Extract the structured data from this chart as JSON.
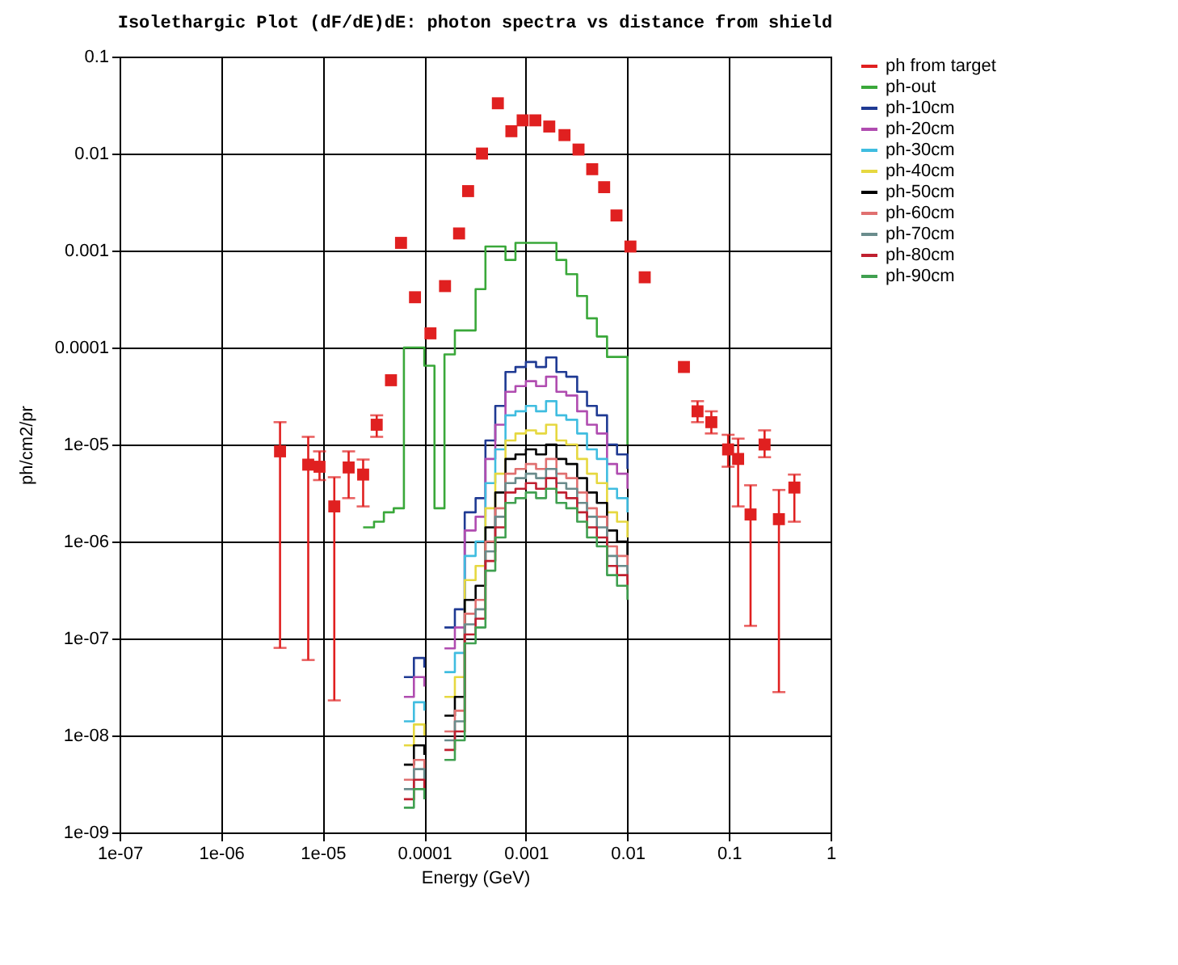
{
  "chart_data": {
    "type": "step",
    "title": "Isolethargic Plot (dF/dE)dE: photon spectra vs distance from shield",
    "xlabel": "Energy (GeV)",
    "ylabel": "ph/cm2/pr",
    "log": "xy",
    "grid": true,
    "legend": "right",
    "xlim": [
      1e-07,
      1
    ],
    "ylim": [
      1e-09,
      0.1
    ],
    "xticks": [
      {
        "value": 1e-07,
        "label": "1e-07"
      },
      {
        "value": 1e-06,
        "label": "1e-06"
      },
      {
        "value": 1e-05,
        "label": "1e-05"
      },
      0.0001,
      0.001,
      0.01,
      0.1,
      1
    ],
    "yticks": [
      {
        "value": 1e-09,
        "label": "1e-09"
      },
      {
        "value": 1e-08,
        "label": "1e-08"
      },
      {
        "value": 1e-07,
        "label": "1e-07"
      },
      {
        "value": 1e-06,
        "label": "1e-06"
      },
      {
        "value": 1e-05,
        "label": "1e-05"
      },
      0.0001,
      0.001,
      0.01,
      0.1
    ],
    "x": [
      6.3e-05,
      7.9e-05,
      0.0001,
      0.000126,
      0.000158,
      0.0002,
      0.00025,
      0.00032,
      0.0004,
      0.0005,
      0.00063,
      0.00079,
      0.001,
      0.00126,
      0.00158,
      0.002,
      0.0025,
      0.0032,
      0.004,
      0.005,
      0.0063,
      0.0079,
      0.01
    ],
    "series": [
      {
        "name": "ph from target",
        "type": "scatter",
        "marker": "square",
        "color": "#e02020",
        "x": [
          3.8e-06,
          7.2e-06,
          9.3e-06,
          1.3e-05,
          1.8e-05,
          2.5e-05,
          3.4e-05,
          4.7e-05,
          5.9e-05,
          8.1e-05,
          0.000115,
          0.00016,
          0.00022,
          0.00027,
          0.00037,
          0.00053,
          0.00072,
          0.00093,
          0.00124,
          0.0017,
          0.0024,
          0.0033,
          0.0045,
          0.0059,
          0.0078,
          0.0107,
          0.0148,
          0.036,
          0.049,
          0.067,
          0.098,
          0.123,
          0.163,
          0.224,
          0.31,
          0.44
        ],
        "values": [
          8.5e-06,
          6.2e-06,
          5.9e-06,
          2.3e-06,
          5.8e-06,
          4.9e-06,
          1.6e-05,
          4.6e-05,
          0.0012,
          0.00033,
          0.00014,
          0.00043,
          0.0015,
          0.0041,
          0.01,
          0.033,
          0.017,
          0.022,
          0.022,
          0.019,
          0.0155,
          0.011,
          0.0069,
          0.0045,
          0.0023,
          0.0011,
          0.00053,
          6.3e-05,
          2.2e-05,
          1.7e-05,
          8.9e-06,
          7.1e-06,
          1.9e-06,
          1e-05,
          1.7e-06,
          3.6e-06
        ],
        "errors": [
          [
            8e-08,
            1.7e-05
          ],
          [
            6e-08,
            1.2e-05
          ],
          [
            4.3e-06,
            8.5e-06
          ],
          [
            2.3e-08,
            4.6e-06
          ],
          [
            2.8e-06,
            8.5e-06
          ],
          [
            2.3e-06,
            7e-06
          ],
          [
            1.2e-05,
            2e-05
          ],
          null,
          null,
          null,
          null,
          null,
          null,
          null,
          null,
          null,
          null,
          null,
          null,
          null,
          null,
          null,
          null,
          null,
          null,
          null,
          null,
          null,
          [
            1.7e-05,
            2.8e-05
          ],
          [
            1.3e-05,
            2.2e-05
          ],
          [
            5.9e-06,
            1.26e-05
          ],
          [
            2.3e-06,
            1.15e-05
          ],
          [
            1.35e-07,
            3.8e-06
          ],
          [
            7.4e-06,
            1.4e-05
          ],
          [
            2.8e-08,
            3.4e-06
          ],
          [
            1.6e-06,
            4.9e-06
          ]
        ]
      },
      {
        "name": "ph-out",
        "color": "#3aa83a",
        "x": [
          2.5e-05,
          3.2e-05,
          4e-05,
          5e-05,
          6.3e-05,
          7.9e-05,
          0.0001,
          0.000126,
          0.000158,
          0.0002,
          0.00025,
          0.00032,
          0.0004,
          0.0005,
          0.00063,
          0.00079,
          0.001,
          0.00126,
          0.00158,
          0.002,
          0.0025,
          0.0032,
          0.004,
          0.005,
          0.0063,
          0.0079,
          0.01
        ],
        "values": [
          1.4e-06,
          1.6e-06,
          2e-06,
          2.2e-06,
          0.0001,
          0.0001,
          6.5e-05,
          2.2e-06,
          8.5e-05,
          0.00015,
          0.00015,
          0.0004,
          0.0011,
          0.0011,
          0.0008,
          0.0012,
          0.0012,
          0.0012,
          0.0012,
          0.0008,
          0.00057,
          0.00034,
          0.0002,
          0.00013,
          8e-05,
          8e-05,
          1e-05
        ]
      },
      {
        "name": "ph-10cm",
        "color": "#1f3a93",
        "values": [
          4e-08,
          6.3e-08,
          5e-08,
          null,
          1.3e-07,
          2e-07,
          2e-06,
          2.8e-06,
          1.1e-05,
          2.5e-05,
          5.6e-05,
          6.3e-05,
          7.1e-05,
          6.3e-05,
          7.9e-05,
          5.6e-05,
          5e-05,
          3.5e-05,
          2.5e-05,
          2e-05,
          1e-05,
          7.9e-06,
          5.6e-06
        ]
      },
      {
        "name": "ph-20cm",
        "color": "#b04cb0",
        "values": [
          2.5e-08,
          4e-08,
          3.2e-08,
          null,
          7.9e-08,
          1.3e-07,
          1.3e-06,
          1.8e-06,
          7.1e-06,
          1.6e-05,
          3.5e-05,
          4e-05,
          4.5e-05,
          4e-05,
          5e-05,
          3.5e-05,
          3.2e-05,
          2.2e-05,
          1.6e-05,
          1.3e-05,
          6.3e-06,
          5e-06,
          3.5e-06
        ]
      },
      {
        "name": "ph-30cm",
        "color": "#40bde0",
        "values": [
          1.4e-08,
          2.2e-08,
          1.8e-08,
          null,
          4.5e-08,
          7.1e-08,
          7.1e-07,
          1e-06,
          4e-06,
          8.9e-06,
          2e-05,
          2.2e-05,
          2.5e-05,
          2.2e-05,
          2.8e-05,
          2e-05,
          1.8e-05,
          1.3e-05,
          8.9e-06,
          7.1e-06,
          3.5e-06,
          2.8e-06,
          2e-06
        ]
      },
      {
        "name": "ph-40cm",
        "color": "#e6d840",
        "values": [
          7.9e-09,
          1.3e-08,
          1e-08,
          null,
          2.5e-08,
          4e-08,
          4e-07,
          5.6e-07,
          2.2e-06,
          5e-06,
          1.1e-05,
          1.3e-05,
          1.4e-05,
          1.3e-05,
          1.6e-05,
          1.1e-05,
          1e-05,
          7.1e-06,
          5e-06,
          4e-06,
          2e-06,
          1.6e-06,
          1.1e-06
        ]
      },
      {
        "name": "ph-50cm",
        "color": "#000000",
        "values": [
          5e-09,
          7.9e-09,
          6.3e-09,
          null,
          1.6e-08,
          2.5e-08,
          2.5e-07,
          3.5e-07,
          1.4e-06,
          3.2e-06,
          7.1e-06,
          7.9e-06,
          8.9e-06,
          7.9e-06,
          1e-05,
          7.1e-06,
          6.3e-06,
          4.5e-06,
          3.2e-06,
          2.5e-06,
          1.3e-06,
          1e-06,
          7.1e-07
        ]
      },
      {
        "name": "ph-60cm",
        "color": "#e07070",
        "values": [
          3.5e-09,
          5.6e-09,
          4.5e-09,
          null,
          1.1e-08,
          1.8e-08,
          1.8e-07,
          2.5e-07,
          1e-06,
          2.2e-06,
          5e-06,
          5.6e-06,
          6.3e-06,
          5.6e-06,
          7.1e-06,
          5e-06,
          4.5e-06,
          3.2e-06,
          2.2e-06,
          1.8e-06,
          8.9e-07,
          7.1e-07,
          5e-07
        ]
      },
      {
        "name": "ph-70cm",
        "color": "#6a8c8c",
        "values": [
          2.8e-09,
          4.5e-09,
          3.5e-09,
          null,
          8.9e-09,
          1.4e-08,
          1.4e-07,
          2e-07,
          7.9e-07,
          1.8e-06,
          4e-06,
          4.5e-06,
          5e-06,
          4.5e-06,
          5.6e-06,
          4e-06,
          3.5e-06,
          2.5e-06,
          1.8e-06,
          1.4e-06,
          7.1e-07,
          5.6e-07,
          4e-07
        ]
      },
      {
        "name": "ph-80cm",
        "color": "#c02030",
        "values": [
          2.2e-09,
          3.5e-09,
          2.8e-09,
          null,
          7.1e-09,
          1.1e-08,
          1.1e-07,
          1.6e-07,
          6.3e-07,
          1.4e-06,
          3.2e-06,
          3.5e-06,
          4e-06,
          3.5e-06,
          4.5e-06,
          3.2e-06,
          2.8e-06,
          2e-06,
          1.4e-06,
          1.1e-06,
          5.6e-07,
          4.5e-07,
          3.2e-07
        ]
      },
      {
        "name": "ph-90cm",
        "color": "#40a050",
        "values": [
          1.8e-09,
          2.8e-09,
          2.2e-09,
          null,
          5.6e-09,
          8.9e-09,
          8.9e-08,
          1.3e-07,
          5e-07,
          1.1e-06,
          2.5e-06,
          2.8e-06,
          3.2e-06,
          2.8e-06,
          3.5e-06,
          2.5e-06,
          2.2e-06,
          1.6e-06,
          1.1e-06,
          8.9e-07,
          4.5e-07,
          3.5e-07,
          2.5e-07
        ]
      }
    ]
  }
}
